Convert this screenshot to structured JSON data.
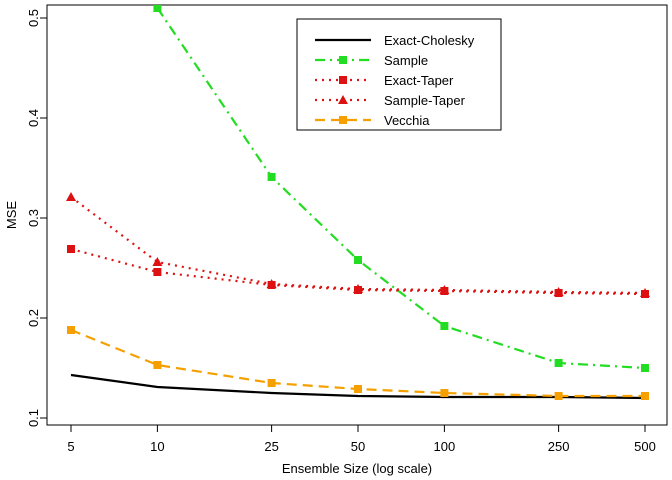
{
  "chart_data": {
    "type": "line",
    "xlabel": "Ensemble Size (log scale)",
    "ylabel": "MSE",
    "x_scale": "log",
    "x": [
      5,
      10,
      25,
      50,
      100,
      250,
      500
    ],
    "x_tick_labels": [
      "5",
      "10",
      "25",
      "50",
      "100",
      "250",
      "500"
    ],
    "y_ticks": [
      0.1,
      0.2,
      0.3,
      0.4,
      0.5
    ],
    "y_tick_labels": [
      "0.1",
      "0.2",
      "0.3",
      "0.4",
      "0.5"
    ],
    "ylim": [
      0.1,
      0.51
    ],
    "grid": false,
    "legend_position": "top-right",
    "series": [
      {
        "name": "Exact-Cholesky",
        "color": "#000000",
        "line_style": "solid",
        "marker": "none",
        "values": [
          0.143,
          0.131,
          0.125,
          0.122,
          0.121,
          0.121,
          0.12
        ]
      },
      {
        "name": "Sample",
        "color": "#22dd22",
        "line_style": "dashdot",
        "marker": "square",
        "values": [
          null,
          0.51,
          0.341,
          0.258,
          0.192,
          0.155,
          0.15
        ]
      },
      {
        "name": "Exact-Taper",
        "color": "#dd1111",
        "line_style": "dotted",
        "marker": "square",
        "values": [
          0.269,
          0.246,
          0.233,
          0.228,
          0.227,
          0.225,
          0.224
        ]
      },
      {
        "name": "Sample-Taper",
        "color": "#dd1111",
        "line_style": "dotted",
        "marker": "triangle",
        "values": [
          0.321,
          0.256,
          0.234,
          0.229,
          0.228,
          0.226,
          0.225
        ]
      },
      {
        "name": "Vecchia",
        "color": "#f5a000",
        "line_style": "dashed",
        "marker": "square",
        "values": [
          0.188,
          0.153,
          0.135,
          0.129,
          0.125,
          0.122,
          0.122
        ]
      }
    ]
  }
}
